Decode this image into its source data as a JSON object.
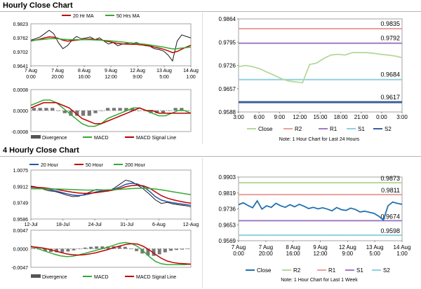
{
  "section1": {
    "title": "Hourly Close Chart"
  },
  "section2": {
    "title": "4 Hourly Close Chart"
  },
  "chart_data": [
    {
      "id": "hourly_price",
      "type": "line",
      "ylim": [
        0.9641,
        0.9823
      ],
      "yticks": [
        "0.9823",
        "0.9762",
        "0.9702",
        "0.9641"
      ],
      "xticks": [
        "7 Aug\n0:00",
        "7 Aug\n20:00",
        "8 Aug\n16:00",
        "9 Aug\n12:00",
        "12 Aug\n9:00",
        "13 Aug\n5:00",
        "14 Aug\n1:00"
      ],
      "legend": [
        "20 Hr MA",
        "50 Hrs MA"
      ],
      "series": [
        {
          "name": "Price",
          "color": "#1a1a1a",
          "values": [
            0.9752,
            0.9758,
            0.9766,
            0.978,
            0.9795,
            0.978,
            0.9742,
            0.9715,
            0.9728,
            0.9752,
            0.9768,
            0.9758,
            0.9761,
            0.9766,
            0.9754,
            0.9762,
            0.9748,
            0.9735,
            0.9742,
            0.9728,
            0.9735,
            0.9738,
            0.9733,
            0.9742,
            0.9736,
            0.9728,
            0.9726,
            0.9715,
            0.9712,
            0.9705,
            0.9688,
            0.9662,
            0.9748,
            0.9775,
            0.9768,
            0.9762
          ]
        },
        {
          "name": "20 Hr MA",
          "color": "#c00000",
          "values": [
            0.9748,
            0.9752,
            0.9757,
            0.9762,
            0.9766,
            0.9765,
            0.976,
            0.9752,
            0.9748,
            0.975,
            0.9752,
            0.9754,
            0.9756,
            0.9757,
            0.9755,
            0.9754,
            0.975,
            0.9746,
            0.9742,
            0.9738,
            0.9736,
            0.9735,
            0.9734,
            0.9734,
            0.9732,
            0.973,
            0.9727,
            0.9722,
            0.9718,
            0.9713,
            0.9706,
            0.9698,
            0.9703,
            0.9713,
            0.9722,
            0.973
          ]
        },
        {
          "name": "50 Hrs MA",
          "color": "#33aa33",
          "values": [
            0.975,
            0.9752,
            0.9754,
            0.9756,
            0.9758,
            0.9759,
            0.9758,
            0.9756,
            0.9755,
            0.9754,
            0.9754,
            0.9754,
            0.9754,
            0.9754,
            0.9753,
            0.9752,
            0.9751,
            0.975,
            0.9748,
            0.9746,
            0.9744,
            0.9742,
            0.974,
            0.9738,
            0.9736,
            0.9734,
            0.9731,
            0.9728,
            0.9725,
            0.9722,
            0.9718,
            0.9714,
            0.9715,
            0.9718,
            0.972,
            0.9722
          ]
        }
      ]
    },
    {
      "id": "hourly_macd",
      "type": "line",
      "ylim": [
        -0.0008,
        0.0008
      ],
      "yticks": [
        "0.0008",
        "0.0000",
        "-0.0008"
      ],
      "legend": [
        "Divergence",
        "MACD",
        "MACD Signal Line"
      ],
      "series": [
        {
          "name": "MACD",
          "color": "#33aa33",
          "values": [
            0.0002,
            0.0003,
            0.0004,
            0.0004,
            0.0003,
            0.0001,
            -0.0001,
            -0.0003,
            -0.0005,
            -0.0006,
            -0.0006,
            -0.0005,
            -0.0003,
            -0.0002,
            -0.0001,
            0.0,
            0.0001,
            0.0001,
            0.0,
            -0.0001,
            -0.0002,
            -0.0002,
            -0.0001,
            0.0,
            0.0,
            -0.0001
          ]
        },
        {
          "name": "MACD Signal Line",
          "color": "#c00000",
          "values": [
            0.0001,
            0.0002,
            0.0003,
            0.0003,
            0.0003,
            0.0002,
            0.0001,
            -0.0001,
            -0.0003,
            -0.0004,
            -0.0005,
            -0.0005,
            -0.0004,
            -0.0003,
            -0.0002,
            -0.0001,
            0.0,
            0.0001,
            0.0,
            0.0,
            -0.0001,
            -0.0001,
            -0.0001,
            -0.0001,
            -0.0001,
            -0.0001
          ]
        },
        {
          "name": "Divergence",
          "color": "#555555",
          "values": [
            0.0001,
            0.0001,
            0.0001,
            0.0001,
            0.0,
            -0.0001,
            -0.0002,
            -0.0002,
            -0.0002,
            -0.0002,
            -0.0001,
            0.0,
            0.0001,
            0.0001,
            0.0001,
            0.0001,
            0.0001,
            0.0,
            0.0,
            -0.0001,
            -0.0001,
            -0.0001,
            0.0,
            0.0001,
            0.0001,
            0.0
          ]
        }
      ]
    },
    {
      "id": "last24h",
      "type": "line",
      "ylim": [
        0.9588,
        0.9864
      ],
      "yticks": [
        "0.9864",
        "0.9795",
        "0.9726",
        "0.9657",
        "0.9588"
      ],
      "xticks": [
        "3:00",
        "6:00",
        "9:00",
        "12:00",
        "15:00",
        "18:00",
        "21:00",
        "0:00",
        "3:00"
      ],
      "levels": [
        {
          "name": "R2",
          "value": 0.9835,
          "label": "0.9835",
          "color": "#e8a0a0"
        },
        {
          "name": "R1",
          "value": 0.9792,
          "label": "0.9792",
          "color": "#a07cc0"
        },
        {
          "name": "S1",
          "value": 0.9684,
          "label": "0.9684",
          "color": "#8fd0e0"
        },
        {
          "name": "S2",
          "value": 0.9617,
          "label": "0.9617",
          "color": "#3a5fa0"
        }
      ],
      "series": [
        {
          "name": "Close",
          "color": "#b6d79a",
          "values": [
            0.9722,
            0.9726,
            0.9722,
            0.9716,
            0.9706,
            0.9697,
            0.9687,
            0.968,
            0.9677,
            0.9675,
            0.9729,
            0.9733,
            0.9747,
            0.9757,
            0.9759,
            0.9757,
            0.9764,
            0.9764,
            0.9764,
            0.9762,
            0.9759,
            0.9757,
            0.9754,
            0.9749
          ]
        }
      ],
      "legend": [
        "Close",
        "R2",
        "R1",
        "S1",
        "S2"
      ],
      "note": "Note: 1 Hour Chart for Last 24 Hours"
    },
    {
      "id": "4h_price",
      "type": "line",
      "ylim": [
        0.9586,
        1.0075
      ],
      "yticks": [
        "1.0075",
        "0.9912",
        "0.9749",
        "0.9586"
      ],
      "xticks": [
        "12-Jul",
        "18-Jul",
        "24-Jul",
        "31-Jul",
        "6-Aug",
        "12-Aug"
      ],
      "legend": [
        "20 Hour",
        "50 Hour",
        "200 Hour"
      ],
      "series": [
        {
          "name": "Price",
          "color": "#1a1a1a",
          "values": [
            0.9915,
            0.9905,
            0.9885,
            0.9868,
            0.9862,
            0.9845,
            0.9825,
            0.981,
            0.9812,
            0.9832,
            0.9856,
            0.988,
            0.9878,
            0.9863,
            0.9892,
            0.9933,
            0.9974,
            0.996,
            0.9924,
            0.9886,
            0.9835,
            0.9778,
            0.9742,
            0.9752,
            0.9736,
            0.9728,
            0.9721,
            0.9707
          ]
        },
        {
          "name": "20 Hour",
          "color": "#2255aa",
          "values": [
            0.9905,
            0.99,
            0.9894,
            0.9882,
            0.9868,
            0.9854,
            0.9838,
            0.9826,
            0.982,
            0.9826,
            0.9838,
            0.9856,
            0.9868,
            0.9872,
            0.9882,
            0.9905,
            0.9932,
            0.9944,
            0.9935,
            0.9908,
            0.9864,
            0.981,
            0.9775,
            0.976,
            0.9748,
            0.974,
            0.9731,
            0.9722
          ]
        },
        {
          "name": "50 Hour",
          "color": "#c00000",
          "values": [
            0.9904,
            0.9902,
            0.9898,
            0.9892,
            0.9884,
            0.9874,
            0.9864,
            0.9854,
            0.9846,
            0.9842,
            0.9844,
            0.985,
            0.9858,
            0.9866,
            0.9876,
            0.989,
            0.9908,
            0.992,
            0.9924,
            0.9917,
            0.9895,
            0.9858,
            0.982,
            0.9795,
            0.9778,
            0.9765,
            0.9753,
            0.9744
          ]
        },
        {
          "name": "200 Hour",
          "color": "#33aa33",
          "values": [
            0.9888,
            0.9888,
            0.9888,
            0.9887,
            0.9886,
            0.9885,
            0.9883,
            0.988,
            0.9878,
            0.9876,
            0.9875,
            0.9875,
            0.9876,
            0.9877,
            0.9879,
            0.9882,
            0.9886,
            0.989,
            0.9893,
            0.9894,
            0.9892,
            0.9886,
            0.9877,
            0.9868,
            0.9858,
            0.9848,
            0.9838,
            0.9829
          ]
        }
      ]
    },
    {
      "id": "4h_macd",
      "type": "line",
      "ylim": [
        -0.0047,
        0.0047
      ],
      "yticks": [
        "0.0047",
        "0.0000",
        "-0.0047"
      ],
      "legend": [
        "Divergence",
        "MACD",
        "MACD Signal Line"
      ],
      "series": [
        {
          "name": "MACD",
          "color": "#33aa33",
          "values": [
            0.0007,
            0.0002,
            -0.0004,
            -0.0009,
            -0.0014,
            -0.0018,
            -0.002,
            -0.0019,
            -0.0016,
            -0.0012,
            -0.0008,
            -0.0004,
            0.0,
            0.0004,
            0.0009,
            0.0014,
            0.0016,
            0.0013,
            0.0006,
            -0.0006,
            -0.002,
            -0.0032,
            -0.0038,
            -0.004,
            -0.004,
            -0.004,
            -0.004,
            -0.0039
          ]
        },
        {
          "name": "MACD Signal Line",
          "color": "#c00000",
          "values": [
            0.0005,
            0.0004,
            0.0002,
            -0.0001,
            -0.0005,
            -0.0009,
            -0.0013,
            -0.0015,
            -0.0016,
            -0.0015,
            -0.0013,
            -0.001,
            -0.0006,
            -0.0002,
            0.0003,
            0.0007,
            0.0011,
            0.0013,
            0.0012,
            0.0006,
            -0.0003,
            -0.0014,
            -0.0024,
            -0.0031,
            -0.0035,
            -0.0037,
            -0.0038,
            -0.0039
          ]
        },
        {
          "name": "Divergence",
          "color": "#555555",
          "values": [
            0.0002,
            -0.0002,
            -0.0006,
            -0.0008,
            -0.0009,
            -0.0009,
            -0.0007,
            -0.0004,
            0.0,
            0.0003,
            0.0005,
            0.0006,
            0.0006,
            0.0006,
            0.0006,
            0.0007,
            0.0005,
            0.0,
            -0.0006,
            -0.0012,
            -0.0017,
            -0.0018,
            -0.0014,
            -0.0009,
            -0.0005,
            -0.0003,
            -0.0002,
            0.0
          ]
        }
      ]
    },
    {
      "id": "lastweek",
      "type": "line",
      "ylim": [
        0.9569,
        0.9903
      ],
      "yticks": [
        "0.9903",
        "0.9819",
        "0.9736",
        "0.9653",
        "0.9569"
      ],
      "xticks": [
        "7 Aug\n0:00",
        "7 Aug\n20:00",
        "8 Aug\n16:00",
        "9 Aug\n12:00",
        "12 Aug\n9:00",
        "13 Aug\n5:00",
        "14 Aug\n1:00"
      ],
      "levels": [
        {
          "name": "R2",
          "value": 0.9873,
          "label": "0.9873",
          "color": "#b6d79a"
        },
        {
          "name": "R1",
          "value": 0.9811,
          "label": "0.9811",
          "color": "#e8a0a0"
        },
        {
          "name": "S1",
          "value": 0.9674,
          "label": "0.9674",
          "color": "#a07cc0"
        },
        {
          "name": "S2",
          "value": 0.9598,
          "label": "0.9598",
          "color": "#8fd0e0"
        }
      ],
      "series": [
        {
          "name": "Close",
          "color": "#2070b0",
          "values": [
            0.9758,
            0.9768,
            0.9754,
            0.9742,
            0.9778,
            0.9735,
            0.9752,
            0.9744,
            0.9765,
            0.9752,
            0.9744,
            0.9758,
            0.9747,
            0.976,
            0.975,
            0.9738,
            0.9744,
            0.9736,
            0.9742,
            0.9735,
            0.9726,
            0.9743,
            0.9732,
            0.9728,
            0.974,
            0.9733,
            0.972,
            0.9724,
            0.9718,
            0.9712,
            0.9698,
            0.9678,
            0.9752,
            0.9772,
            0.9765,
            0.976
          ]
        }
      ],
      "legend": [
        "Close",
        "R2",
        "R1",
        "S1",
        "S2"
      ],
      "note": "Note: 1 Hour Chart for Last 1 Week"
    }
  ]
}
